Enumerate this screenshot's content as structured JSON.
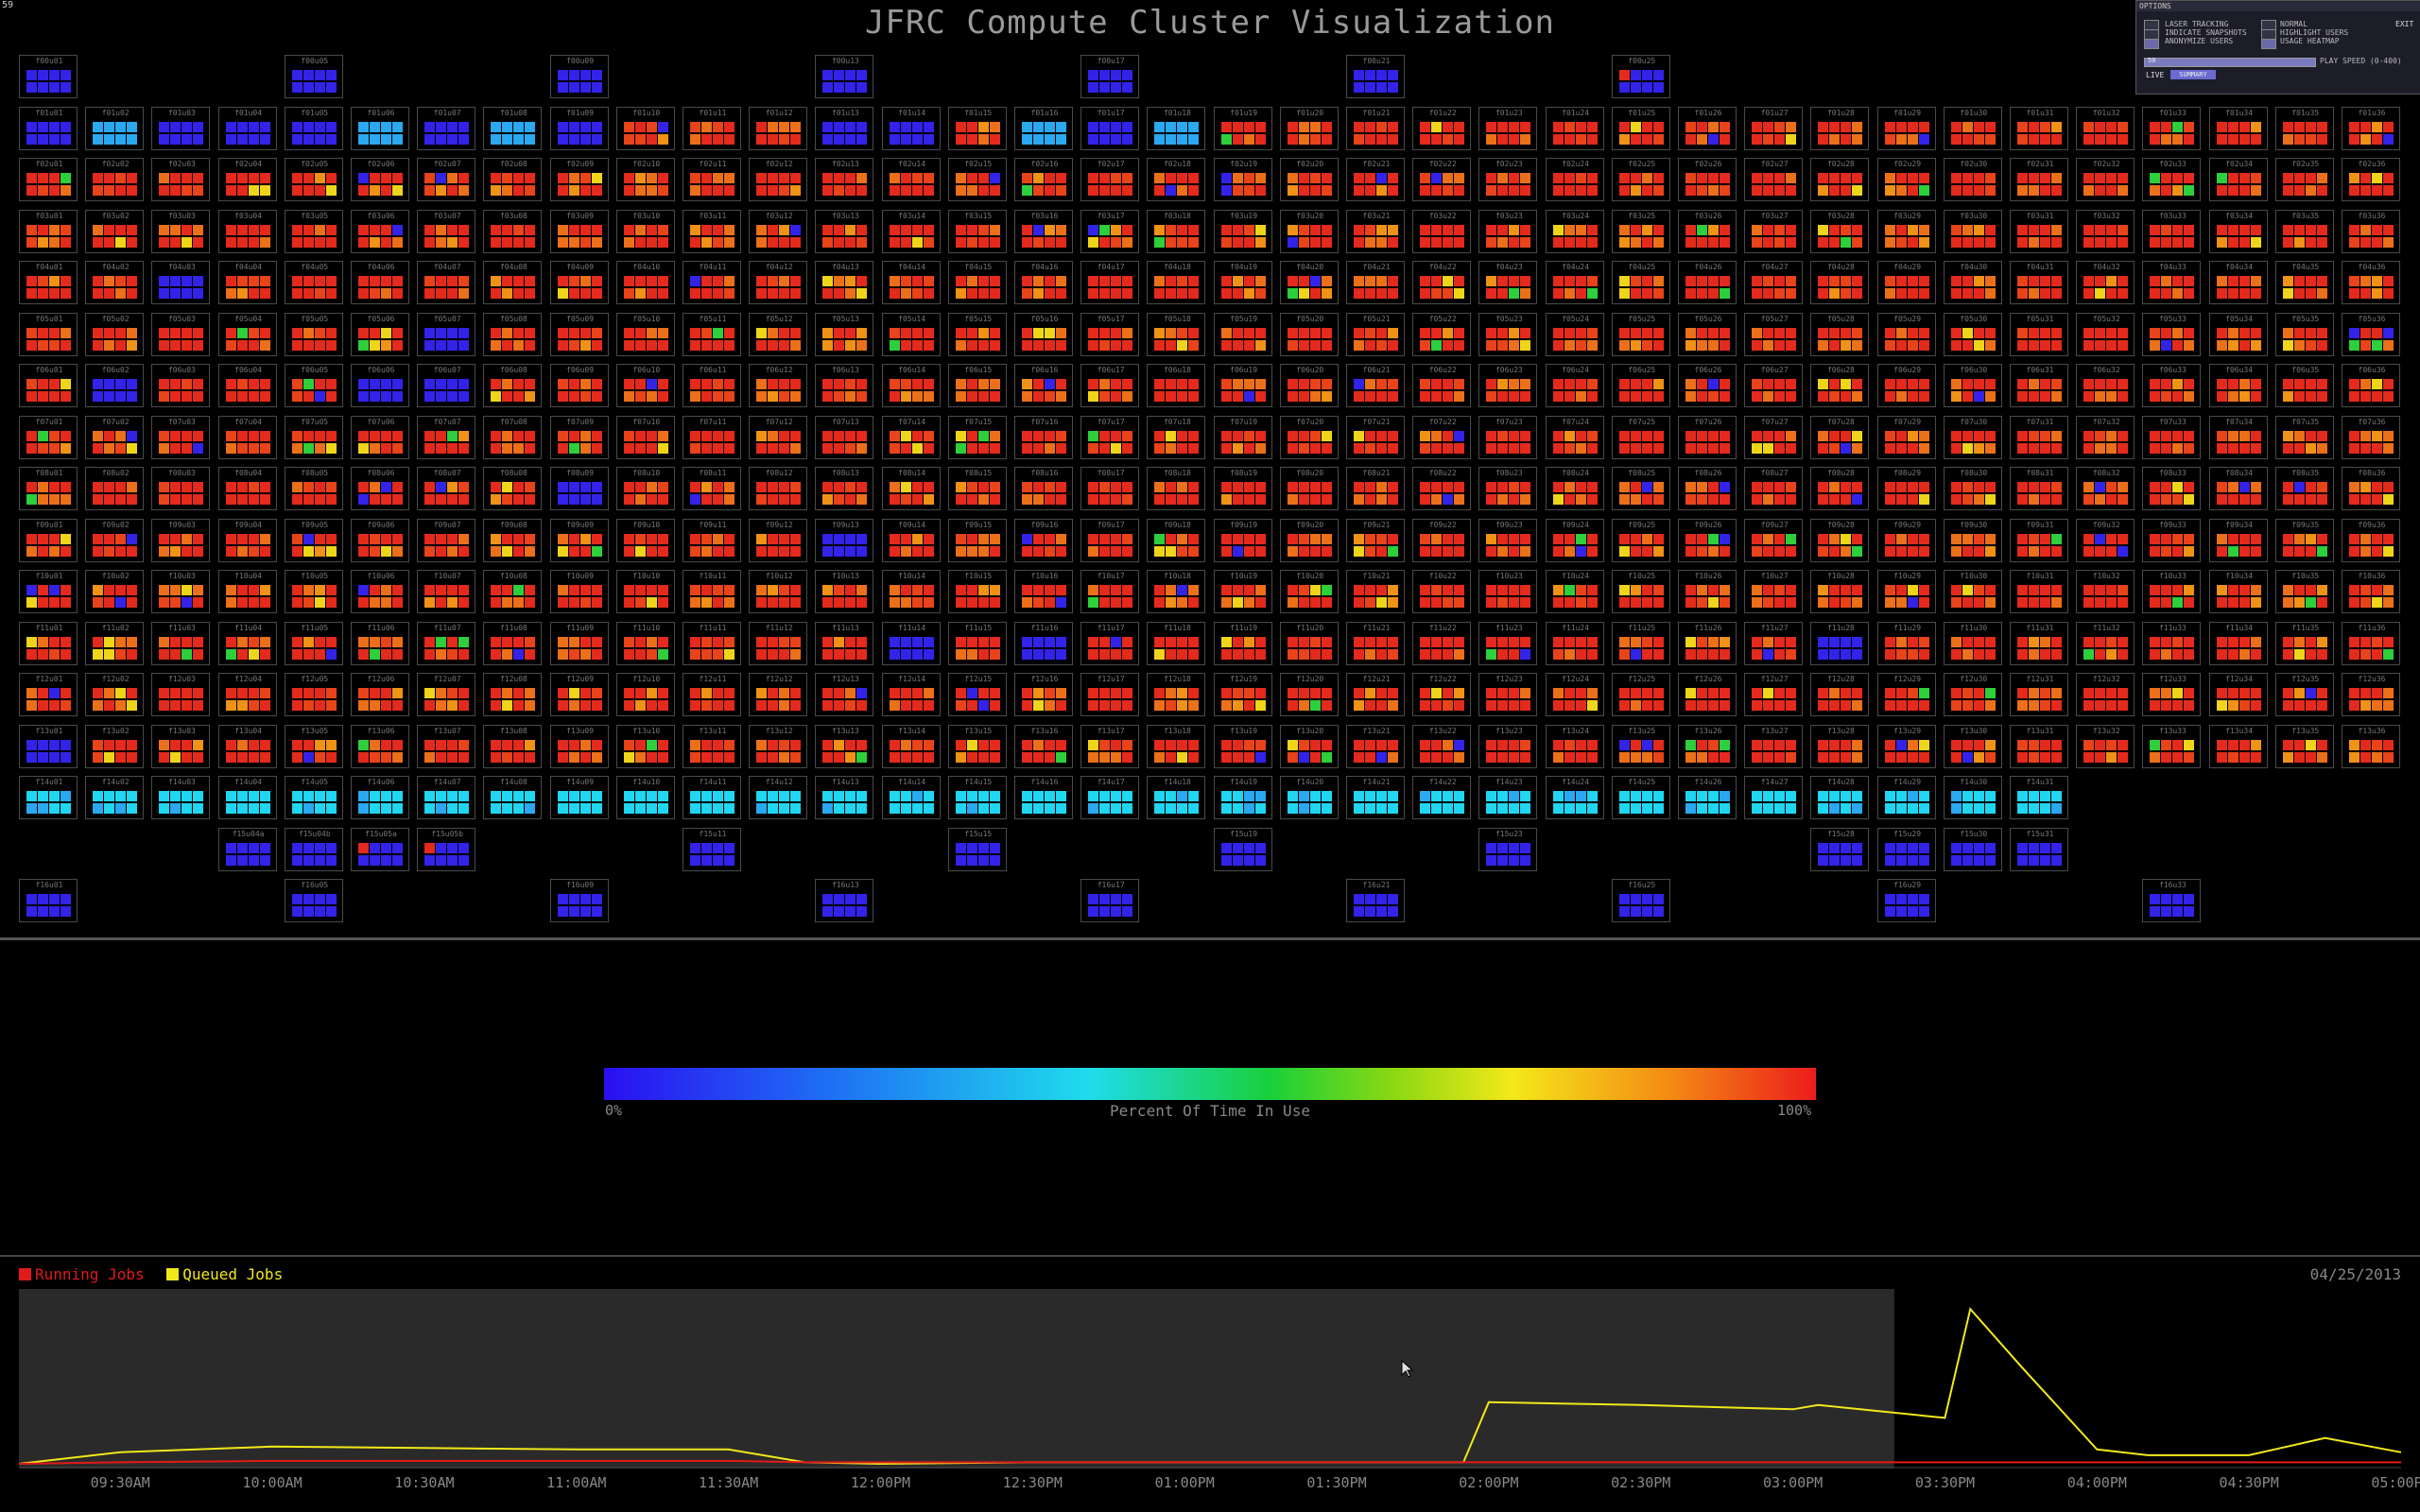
{
  "fps": "59",
  "title": "JFRC Compute Cluster Visualization",
  "options": {
    "header": "OPTIONS",
    "items": [
      {
        "label": "LASER TRACKING",
        "checked": false
      },
      {
        "label": "INDICATE SNAPSHOTS",
        "checked": false
      },
      {
        "label": "ANONYMIZE USERS",
        "checked": true
      },
      {
        "label": "NORMAL",
        "checked": false
      },
      {
        "label": "HIGHLIGHT USERS",
        "checked": false
      },
      {
        "label": "USAGE HEATMAP",
        "checked": true
      }
    ],
    "exit": "EXIT",
    "slider_value": "50",
    "speed_label": "PLAY SPEED (0-400)",
    "live": "LIVE",
    "summary": "SUMMARY"
  },
  "legend": {
    "min": "0%",
    "max": "100%",
    "title": "Percent Of Time In Use"
  },
  "chart": {
    "running_label": "Running Jobs",
    "queued_label": "Queued Jobs",
    "running_color": "#e21a1a",
    "queued_color": "#f0e81a",
    "date": "04/25/2013",
    "time_ticks": [
      "09:30AM",
      "10:00AM",
      "10:30AM",
      "11:00AM",
      "11:30AM",
      "12:00PM",
      "12:30PM",
      "01:00PM",
      "01:30PM",
      "02:00PM",
      "02:30PM",
      "03:00PM",
      "03:30PM",
      "04:00PM",
      "04:30PM",
      "05:00PM"
    ]
  },
  "chart_data": {
    "type": "line",
    "x": [
      "09:10AM",
      "09:30AM",
      "10:00AM",
      "10:30AM",
      "11:00AM",
      "11:30AM",
      "11:45AM",
      "12:00PM",
      "12:30PM",
      "01:00PM",
      "01:30PM",
      "01:55PM",
      "02:00PM",
      "02:30PM",
      "03:00PM",
      "03:05PM",
      "03:30PM",
      "03:35PM",
      "03:45PM",
      "04:00PM",
      "04:10PM",
      "04:30PM",
      "04:45PM",
      "05:00PM"
    ],
    "series": [
      {
        "name": "Queued Jobs",
        "values": [
          2,
          10,
          14,
          13,
          12,
          12,
          3,
          2,
          3,
          3,
          3,
          3,
          45,
          43,
          40,
          43,
          34,
          110,
          70,
          12,
          8,
          8,
          20,
          10
        ]
      },
      {
        "name": "Running Jobs",
        "values": [
          2,
          3,
          4,
          4,
          4,
          4,
          3,
          3,
          3,
          3,
          3,
          3,
          3,
          3,
          3,
          3,
          3,
          3,
          3,
          3,
          3,
          3,
          3,
          3
        ]
      }
    ],
    "ylim": [
      0,
      120
    ]
  },
  "cluster": {
    "rack_labels": {
      "f00": [
        "f00u01",
        "f00u05",
        "f00u09",
        "f00u13",
        "f00u17",
        "f00u21",
        "f00u25"
      ],
      "f15": [
        "f15u04a",
        "f15u04b",
        "f15u05a",
        "f15u05b",
        "f15u11",
        "f15u15",
        "f15u19",
        "f15u23",
        "f15u28",
        "f15u29",
        "f15u30",
        "f15u31"
      ],
      "f16": [
        "f16u01",
        "f16u05",
        "f16u09",
        "f16u13",
        "f16u17",
        "f16u21",
        "f16u25",
        "f16u29",
        "f16u33"
      ]
    }
  }
}
